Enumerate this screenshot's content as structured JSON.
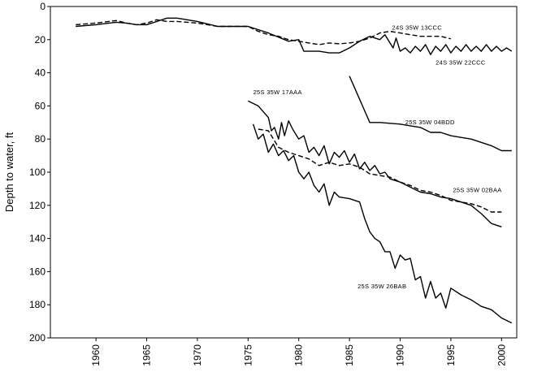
{
  "chart_data": {
    "type": "line",
    "title": "",
    "xlabel": "",
    "ylabel": "Depth to water, ft",
    "xlim": [
      1955.5,
      2001.5
    ],
    "ylim": [
      0,
      200
    ],
    "y_inverted": true,
    "grid": false,
    "legend": "none (inline series labels)",
    "x_ticks": [
      1960,
      1965,
      1970,
      1975,
      1980,
      1985,
      1990,
      1995,
      2000
    ],
    "y_ticks": [
      0,
      20,
      40,
      60,
      80,
      100,
      120,
      140,
      160,
      180,
      200
    ],
    "series": [
      {
        "name": "24S 35W 13CCC",
        "style": "dashed",
        "points": [
          [
            1958,
            11
          ],
          [
            1960,
            10
          ],
          [
            1962,
            8.5
          ],
          [
            1963,
            10
          ],
          [
            1964,
            11
          ],
          [
            1965,
            10
          ],
          [
            1966,
            8
          ],
          [
            1967,
            9
          ],
          [
            1968,
            9
          ],
          [
            1970,
            10
          ],
          [
            1972,
            12
          ],
          [
            1973,
            12
          ],
          [
            1975,
            12
          ],
          [
            1976,
            15
          ],
          [
            1977,
            17
          ],
          [
            1978,
            18
          ],
          [
            1979,
            20
          ],
          [
            1980,
            21
          ],
          [
            1981,
            22
          ],
          [
            1982,
            23
          ],
          [
            1983,
            22
          ],
          [
            1984,
            22.5
          ],
          [
            1985,
            22
          ],
          [
            1986,
            21
          ],
          [
            1987,
            19
          ],
          [
            1988,
            16
          ],
          [
            1989,
            15
          ],
          [
            1990,
            16
          ],
          [
            1991,
            17
          ],
          [
            1992,
            18
          ],
          [
            1993,
            18
          ],
          [
            1994,
            18
          ],
          [
            1995,
            19.5
          ]
        ]
      },
      {
        "name": "24S 35W 22CCC",
        "style": "solid",
        "points": [
          [
            1958,
            12
          ],
          [
            1960,
            11
          ],
          [
            1962,
            9.5
          ],
          [
            1963,
            10
          ],
          [
            1964,
            11
          ],
          [
            1965,
            11
          ],
          [
            1966,
            9
          ],
          [
            1967,
            7
          ],
          [
            1968,
            7
          ],
          [
            1970,
            9
          ],
          [
            1972,
            12
          ],
          [
            1973,
            12
          ],
          [
            1975,
            12
          ],
          [
            1977,
            16
          ],
          [
            1979,
            21
          ],
          [
            1980,
            20
          ],
          [
            1980.5,
            27
          ],
          [
            1982,
            27
          ],
          [
            1983,
            28
          ],
          [
            1984,
            28
          ],
          [
            1985,
            25
          ],
          [
            1986,
            21
          ],
          [
            1987,
            18
          ],
          [
            1988,
            20
          ],
          [
            1988.5,
            17
          ],
          [
            1989,
            22
          ],
          [
            1989.3,
            25
          ],
          [
            1989.6,
            19
          ],
          [
            1990,
            27
          ],
          [
            1990.5,
            25
          ],
          [
            1991,
            28
          ],
          [
            1991.5,
            24
          ],
          [
            1992,
            27
          ],
          [
            1992.5,
            23
          ],
          [
            1993,
            29
          ],
          [
            1993.5,
            24
          ],
          [
            1994,
            27
          ],
          [
            1994.5,
            23
          ],
          [
            1995,
            28
          ],
          [
            1995.5,
            24
          ],
          [
            1996,
            27
          ],
          [
            1996.5,
            23
          ],
          [
            1997,
            27
          ],
          [
            1997.5,
            24
          ],
          [
            1998,
            27
          ],
          [
            1998.5,
            23
          ],
          [
            1999,
            27
          ],
          [
            1999.5,
            24
          ],
          [
            2000,
            27
          ],
          [
            2000.5,
            25
          ],
          [
            2001,
            27
          ]
        ]
      },
      {
        "name": "25S 35W 17AAA",
        "style": "solid",
        "points": [
          [
            1975,
            57
          ],
          [
            1976,
            60
          ],
          [
            1977,
            67
          ],
          [
            1977.3,
            75
          ],
          [
            1977.6,
            73
          ],
          [
            1978,
            80
          ],
          [
            1978.3,
            70
          ],
          [
            1978.6,
            78
          ],
          [
            1979,
            69
          ],
          [
            1979.4,
            74
          ],
          [
            1980,
            80
          ],
          [
            1980.5,
            78
          ],
          [
            1981,
            88
          ],
          [
            1981.5,
            85
          ],
          [
            1982,
            90
          ],
          [
            1982.5,
            84
          ],
          [
            1983,
            95
          ],
          [
            1983.5,
            88
          ],
          [
            1984,
            91
          ],
          [
            1984.5,
            87
          ],
          [
            1985,
            94
          ],
          [
            1985.5,
            89
          ],
          [
            1986,
            98
          ],
          [
            1986.5,
            94
          ],
          [
            1987,
            99
          ],
          [
            1987.5,
            96
          ],
          [
            1988,
            101
          ],
          [
            1988.5,
            100
          ],
          [
            1989,
            104
          ],
          [
            1990,
            106
          ],
          [
            1991,
            109
          ],
          [
            1992,
            112
          ],
          [
            1993,
            113
          ],
          [
            1994,
            115
          ],
          [
            1995,
            116
          ],
          [
            1996,
            118
          ],
          [
            1997,
            120
          ],
          [
            1998,
            125
          ],
          [
            1999,
            131
          ],
          [
            2000,
            133
          ]
        ]
      },
      {
        "name": "25S 35W 04BDD",
        "style": "solid",
        "points": [
          [
            1985,
            42
          ],
          [
            1986,
            56
          ],
          [
            1987,
            70
          ],
          [
            1988,
            70
          ],
          [
            1990,
            71
          ],
          [
            1991,
            72
          ],
          [
            1992,
            73
          ],
          [
            1993,
            76
          ],
          [
            1994,
            76
          ],
          [
            1995,
            78
          ],
          [
            1996,
            79
          ],
          [
            1997,
            80
          ],
          [
            1998,
            82
          ],
          [
            1999,
            84
          ],
          [
            2000,
            87
          ],
          [
            2001,
            87
          ]
        ]
      },
      {
        "name": "25S 35W 02BAA",
        "style": "dashed",
        "points": [
          [
            1976,
            74
          ],
          [
            1977,
            75
          ],
          [
            1978,
            85
          ],
          [
            1979,
            88
          ],
          [
            1980,
            90
          ],
          [
            1981,
            92
          ],
          [
            1982,
            96
          ],
          [
            1983,
            94
          ],
          [
            1984,
            96
          ],
          [
            1985,
            95
          ],
          [
            1986,
            97
          ],
          [
            1987,
            101
          ],
          [
            1988,
            102
          ],
          [
            1989,
            103
          ],
          [
            1990,
            106
          ],
          [
            1991,
            108
          ],
          [
            1992,
            111
          ],
          [
            1993,
            112
          ],
          [
            1994,
            114
          ],
          [
            1995,
            117
          ],
          [
            1996,
            118
          ],
          [
            1997,
            119
          ],
          [
            1998,
            121
          ],
          [
            1999,
            124
          ],
          [
            2000,
            124
          ]
        ]
      },
      {
        "name": "25S 35W 26BAB",
        "style": "solid",
        "points": [
          [
            1975.5,
            71
          ],
          [
            1976,
            80
          ],
          [
            1976.5,
            77
          ],
          [
            1977,
            88
          ],
          [
            1977.5,
            83
          ],
          [
            1978,
            90
          ],
          [
            1978.5,
            87
          ],
          [
            1979,
            93
          ],
          [
            1979.5,
            90
          ],
          [
            1980,
            100
          ],
          [
            1980.5,
            104
          ],
          [
            1981,
            100
          ],
          [
            1981.5,
            108
          ],
          [
            1982,
            112
          ],
          [
            1982.5,
            107
          ],
          [
            1983,
            120
          ],
          [
            1983.5,
            112
          ],
          [
            1984,
            115
          ],
          [
            1985,
            116
          ],
          [
            1986,
            118
          ],
          [
            1986.5,
            128
          ],
          [
            1987,
            136
          ],
          [
            1987.5,
            140
          ],
          [
            1988,
            142
          ],
          [
            1988.5,
            148
          ],
          [
            1989,
            148
          ],
          [
            1989.5,
            158
          ],
          [
            1990,
            150
          ],
          [
            1990.5,
            153
          ],
          [
            1991,
            152
          ],
          [
            1991.5,
            165
          ],
          [
            1992,
            163
          ],
          [
            1992.5,
            176
          ],
          [
            1993,
            166
          ],
          [
            1993.5,
            176
          ],
          [
            1994,
            173
          ],
          [
            1994.5,
            182
          ],
          [
            1995,
            170
          ],
          [
            1996,
            174
          ],
          [
            1997,
            177
          ],
          [
            1998,
            181
          ],
          [
            1999,
            183
          ],
          [
            2000,
            188
          ],
          [
            2001,
            191
          ]
        ]
      }
    ]
  }
}
